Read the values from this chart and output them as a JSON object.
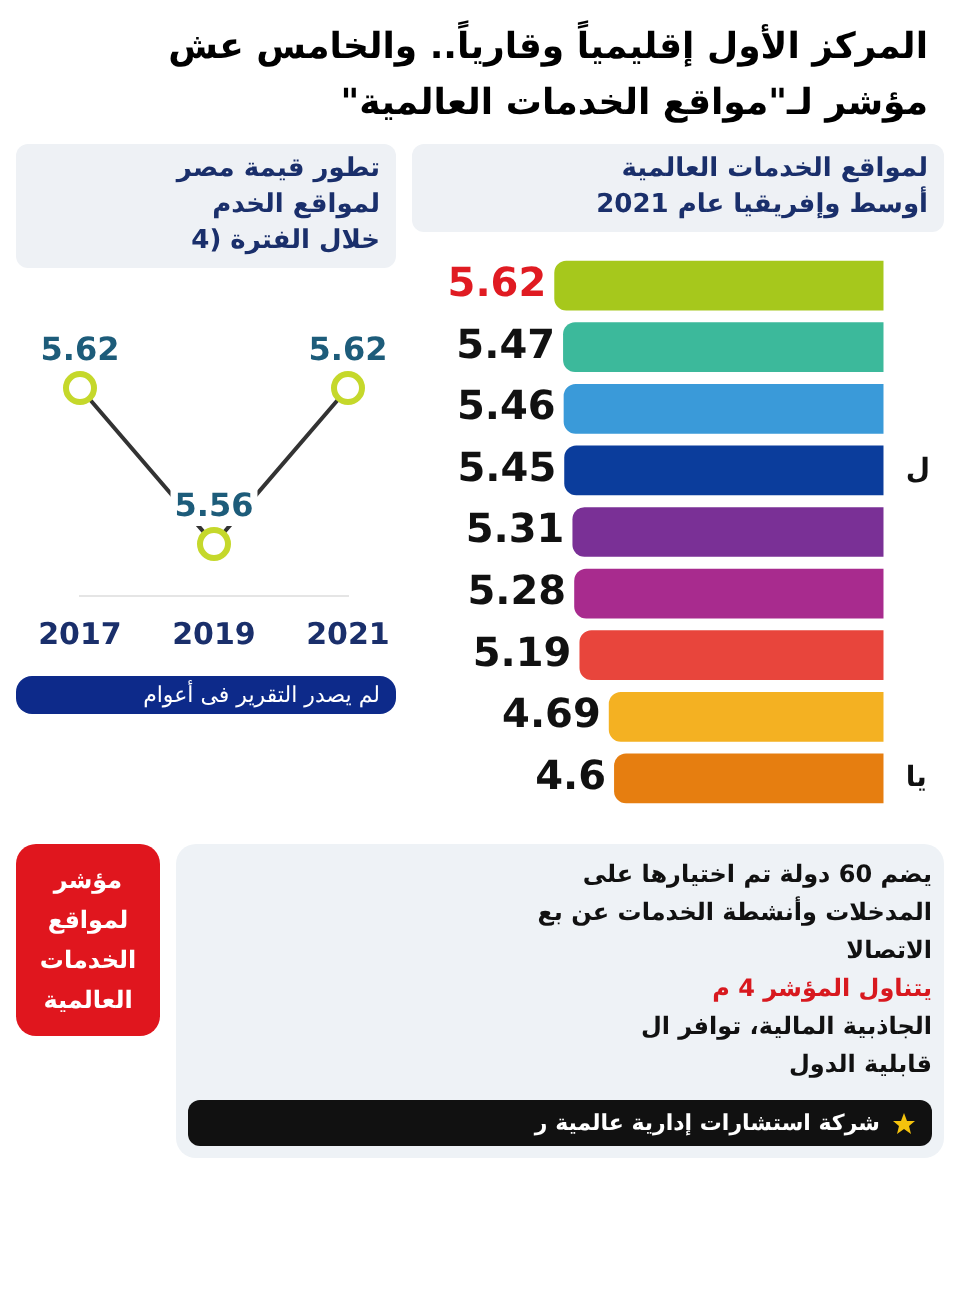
{
  "chart_data": [
    {
      "type": "other",
      "title": "المركز الأول إقليمياً وقارياً.. والخامس عش\nمؤشر لـ\"مواقع الخدمات العالمية\""
    },
    {
      "type": "line",
      "title": "تطور قيمة مصر\nلمواقع الخدم\nخلال الفترة (4",
      "categories": [
        "2017",
        "2019",
        "2021"
      ],
      "series": [
        {
          "color": "#333333",
          "values": [
            5.62,
            5.56,
            5.62
          ]
        }
      ],
      "marker": "circle",
      "data_labels": true,
      "grid": false,
      "tick_labels": "x",
      "annotations": [
        "لم يصدر التقرير فى أعوام"
      ]
    },
    {
      "type": "bar",
      "orientation": "horizontal",
      "title": "لمواقع الخدمات العالمية\nأوسط وإفريقيا عام 2021",
      "categories": [
        null,
        null,
        null,
        "ل",
        null,
        null,
        null,
        null,
        "يا"
      ],
      "values": [
        5.62,
        5.47,
        5.46,
        5.45,
        5.31,
        5.28,
        5.19,
        4.69,
        4.6
      ],
      "colors": [
        "#a6c81c",
        "#3cb99b",
        "#3a9ad9",
        "#0b3d9c",
        "#7a3096",
        "#a82b8e",
        "#e8453c",
        "#f4b122",
        "#e67e10"
      ],
      "data_labels": true,
      "grid": false,
      "tick_labels": "y"
    },
    {
      "type": "other",
      "annotations": [
        "يضم 60 دولة تم اختيارها على",
        "المدخلات وأنشطة الخدمات عن بع",
        "الاتصالا",
        "يتناول المؤشر 4 م",
        "الجاذبية المالية، توافر ال",
        "قابلية الدول",
        "مؤشر لمواقع الخدمات العالمية",
        "شركة استشارات إدارية عالمية ر"
      ]
    }
  ]
}
